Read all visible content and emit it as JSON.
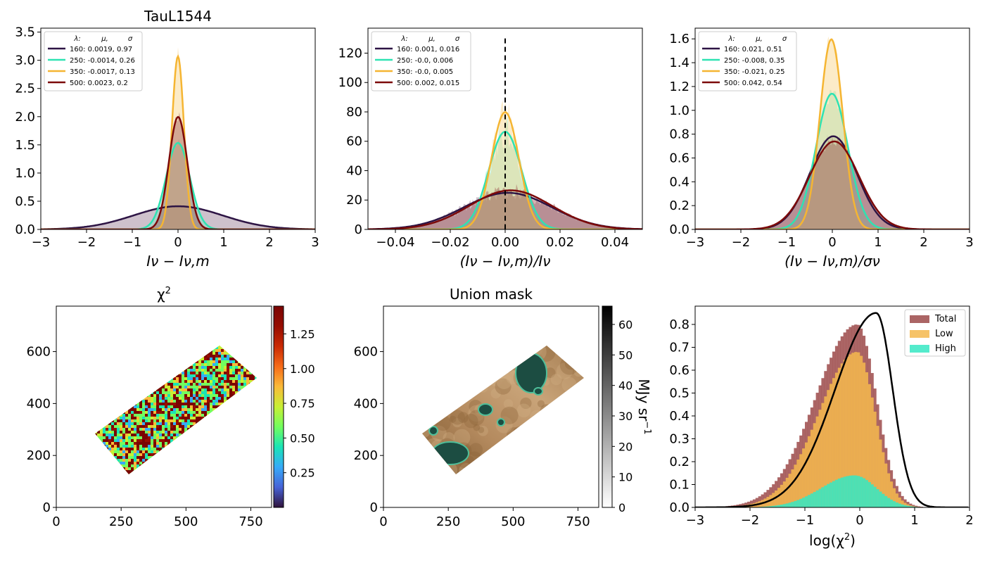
{
  "chart_data": [
    {
      "type": "area",
      "title": "TauL1544",
      "xlabel": "Iν − Iν,m",
      "ylabel": "",
      "xlim": [
        -3,
        3
      ],
      "ylim": [
        0,
        3.57
      ],
      "xticks": [
        "−3",
        "−2",
        "−1",
        "0",
        "1",
        "2",
        "3"
      ],
      "yticks": [
        "0.0",
        "0.5",
        "1.0",
        "1.5",
        "2.0",
        "2.5",
        "3.0",
        "3.5"
      ],
      "legend_header": [
        "λ:",
        "μ,",
        "σ"
      ],
      "legend_placement": "upper-left",
      "series": [
        {
          "name": "160: 0.0019,  0.97",
          "wavelength": 160,
          "mu": 0.0019,
          "sigma": 0.97,
          "color": "#2d1444"
        },
        {
          "name": "250: -0.0014,  0.26",
          "wavelength": 250,
          "mu": -0.0014,
          "sigma": 0.26,
          "color": "#2ee3b2"
        },
        {
          "name": "350: -0.0017,  0.13",
          "wavelength": 350,
          "mu": -0.0017,
          "sigma": 0.13,
          "color": "#f5b532"
        },
        {
          "name": "500: 0.0023,  0.2",
          "wavelength": 500,
          "mu": 0.0023,
          "sigma": 0.2,
          "color": "#7c0a0a"
        }
      ]
    },
    {
      "type": "area",
      "title": "",
      "xlabel": "(Iν − Iν,m)/Iν",
      "ylabel": "",
      "xlim": [
        -0.05,
        0.05
      ],
      "ylim": [
        0,
        137
      ],
      "xticks": [
        "−0.04",
        "−0.02",
        "0.00",
        "0.02",
        "0.04"
      ],
      "yticks": [
        "0",
        "20",
        "40",
        "60",
        "80",
        "100",
        "120"
      ],
      "legend_header": [
        "λ:",
        "μ,",
        "σ"
      ],
      "legend_placement": "upper-left",
      "vertical_line_x": 0,
      "series": [
        {
          "name": "160: 0.001,  0.016",
          "wavelength": 160,
          "mu": 0.001,
          "sigma": 0.016,
          "color": "#2d1444"
        },
        {
          "name": "250: -0.0,  0.006",
          "wavelength": 250,
          "mu": 0.0,
          "sigma": 0.006,
          "color": "#2ee3b2"
        },
        {
          "name": "350: -0.0,  0.005",
          "wavelength": 350,
          "mu": 0.0,
          "sigma": 0.005,
          "color": "#f5b532"
        },
        {
          "name": "500: 0.002,  0.015",
          "wavelength": 500,
          "mu": 0.002,
          "sigma": 0.015,
          "color": "#7c0a0a"
        }
      ]
    },
    {
      "type": "area",
      "title": "",
      "xlabel": "(Iν − Iν,m)/σν",
      "ylabel": "",
      "xlim": [
        -3,
        3
      ],
      "ylim": [
        0,
        1.69
      ],
      "xticks": [
        "−3",
        "−2",
        "−1",
        "0",
        "1",
        "2",
        "3"
      ],
      "yticks": [
        "0.0",
        "0.2",
        "0.4",
        "0.6",
        "0.8",
        "1.0",
        "1.2",
        "1.4",
        "1.6"
      ],
      "legend_header": [
        "λ:",
        "μ,",
        "σ"
      ],
      "legend_placement": "upper-left",
      "series": [
        {
          "name": "160: 0.021,  0.51",
          "wavelength": 160,
          "mu": 0.021,
          "sigma": 0.51,
          "color": "#2d1444"
        },
        {
          "name": "250: -0.008,  0.35",
          "wavelength": 250,
          "mu": -0.008,
          "sigma": 0.35,
          "color": "#2ee3b2"
        },
        {
          "name": "350: -0.021,  0.25",
          "wavelength": 350,
          "mu": -0.021,
          "sigma": 0.25,
          "color": "#f5b532"
        },
        {
          "name": "500: 0.042,  0.54",
          "wavelength": 500,
          "mu": 0.042,
          "sigma": 0.54,
          "color": "#7c0a0a"
        }
      ]
    },
    {
      "type": "heatmap",
      "title": "χ2",
      "xlim": [
        0,
        830
      ],
      "ylim": [
        0,
        775
      ],
      "xticks": [
        "0",
        "250",
        "500",
        "750"
      ],
      "yticks": [
        "0",
        "200",
        "400",
        "600"
      ],
      "colorbar": {
        "label": "",
        "ticks": [
          "0.25",
          "0.50",
          "0.75",
          "1.00",
          "1.25"
        ],
        "range": [
          0.0,
          1.45
        ],
        "colormap": "turbo"
      }
    },
    {
      "type": "heatmap",
      "title": "Union mask",
      "xlim": [
        0,
        830
      ],
      "ylim": [
        0,
        775
      ],
      "xticks": [
        "0",
        "250",
        "500",
        "750"
      ],
      "yticks": [
        "0",
        "200",
        "400",
        "600"
      ],
      "colorbar": {
        "label": "MJy sr−1",
        "ticks": [
          "0",
          "10",
          "20",
          "30",
          "40",
          "50",
          "60"
        ],
        "range": [
          0,
          66
        ],
        "colormap": "gray_r"
      }
    },
    {
      "type": "bar",
      "title": "",
      "xlabel": "log(χ2)",
      "ylabel": "",
      "xlim": [
        -3,
        2
      ],
      "ylim": [
        0,
        0.88
      ],
      "xticks": [
        "−3",
        "−2",
        "−1",
        "0",
        "1",
        "2"
      ],
      "yticks": [
        "0.0",
        "0.1",
        "0.2",
        "0.3",
        "0.4",
        "0.5",
        "0.6",
        "0.7",
        "0.8"
      ],
      "legend_placement": "upper-right",
      "series": [
        {
          "name": "Total",
          "color": "#9c4a4a",
          "peak_x": -0.05,
          "peak_y": 0.8
        },
        {
          "name": "Low",
          "color": "#f5b94e",
          "peak_x": -0.05,
          "peak_y": 0.68
        },
        {
          "name": "High",
          "color": "#36e8c3",
          "peak_x": -0.1,
          "peak_y": 0.14
        }
      ],
      "reference_curve": {
        "color": "#000000",
        "peak_x": 0.3,
        "peak_y": 0.85
      }
    }
  ]
}
